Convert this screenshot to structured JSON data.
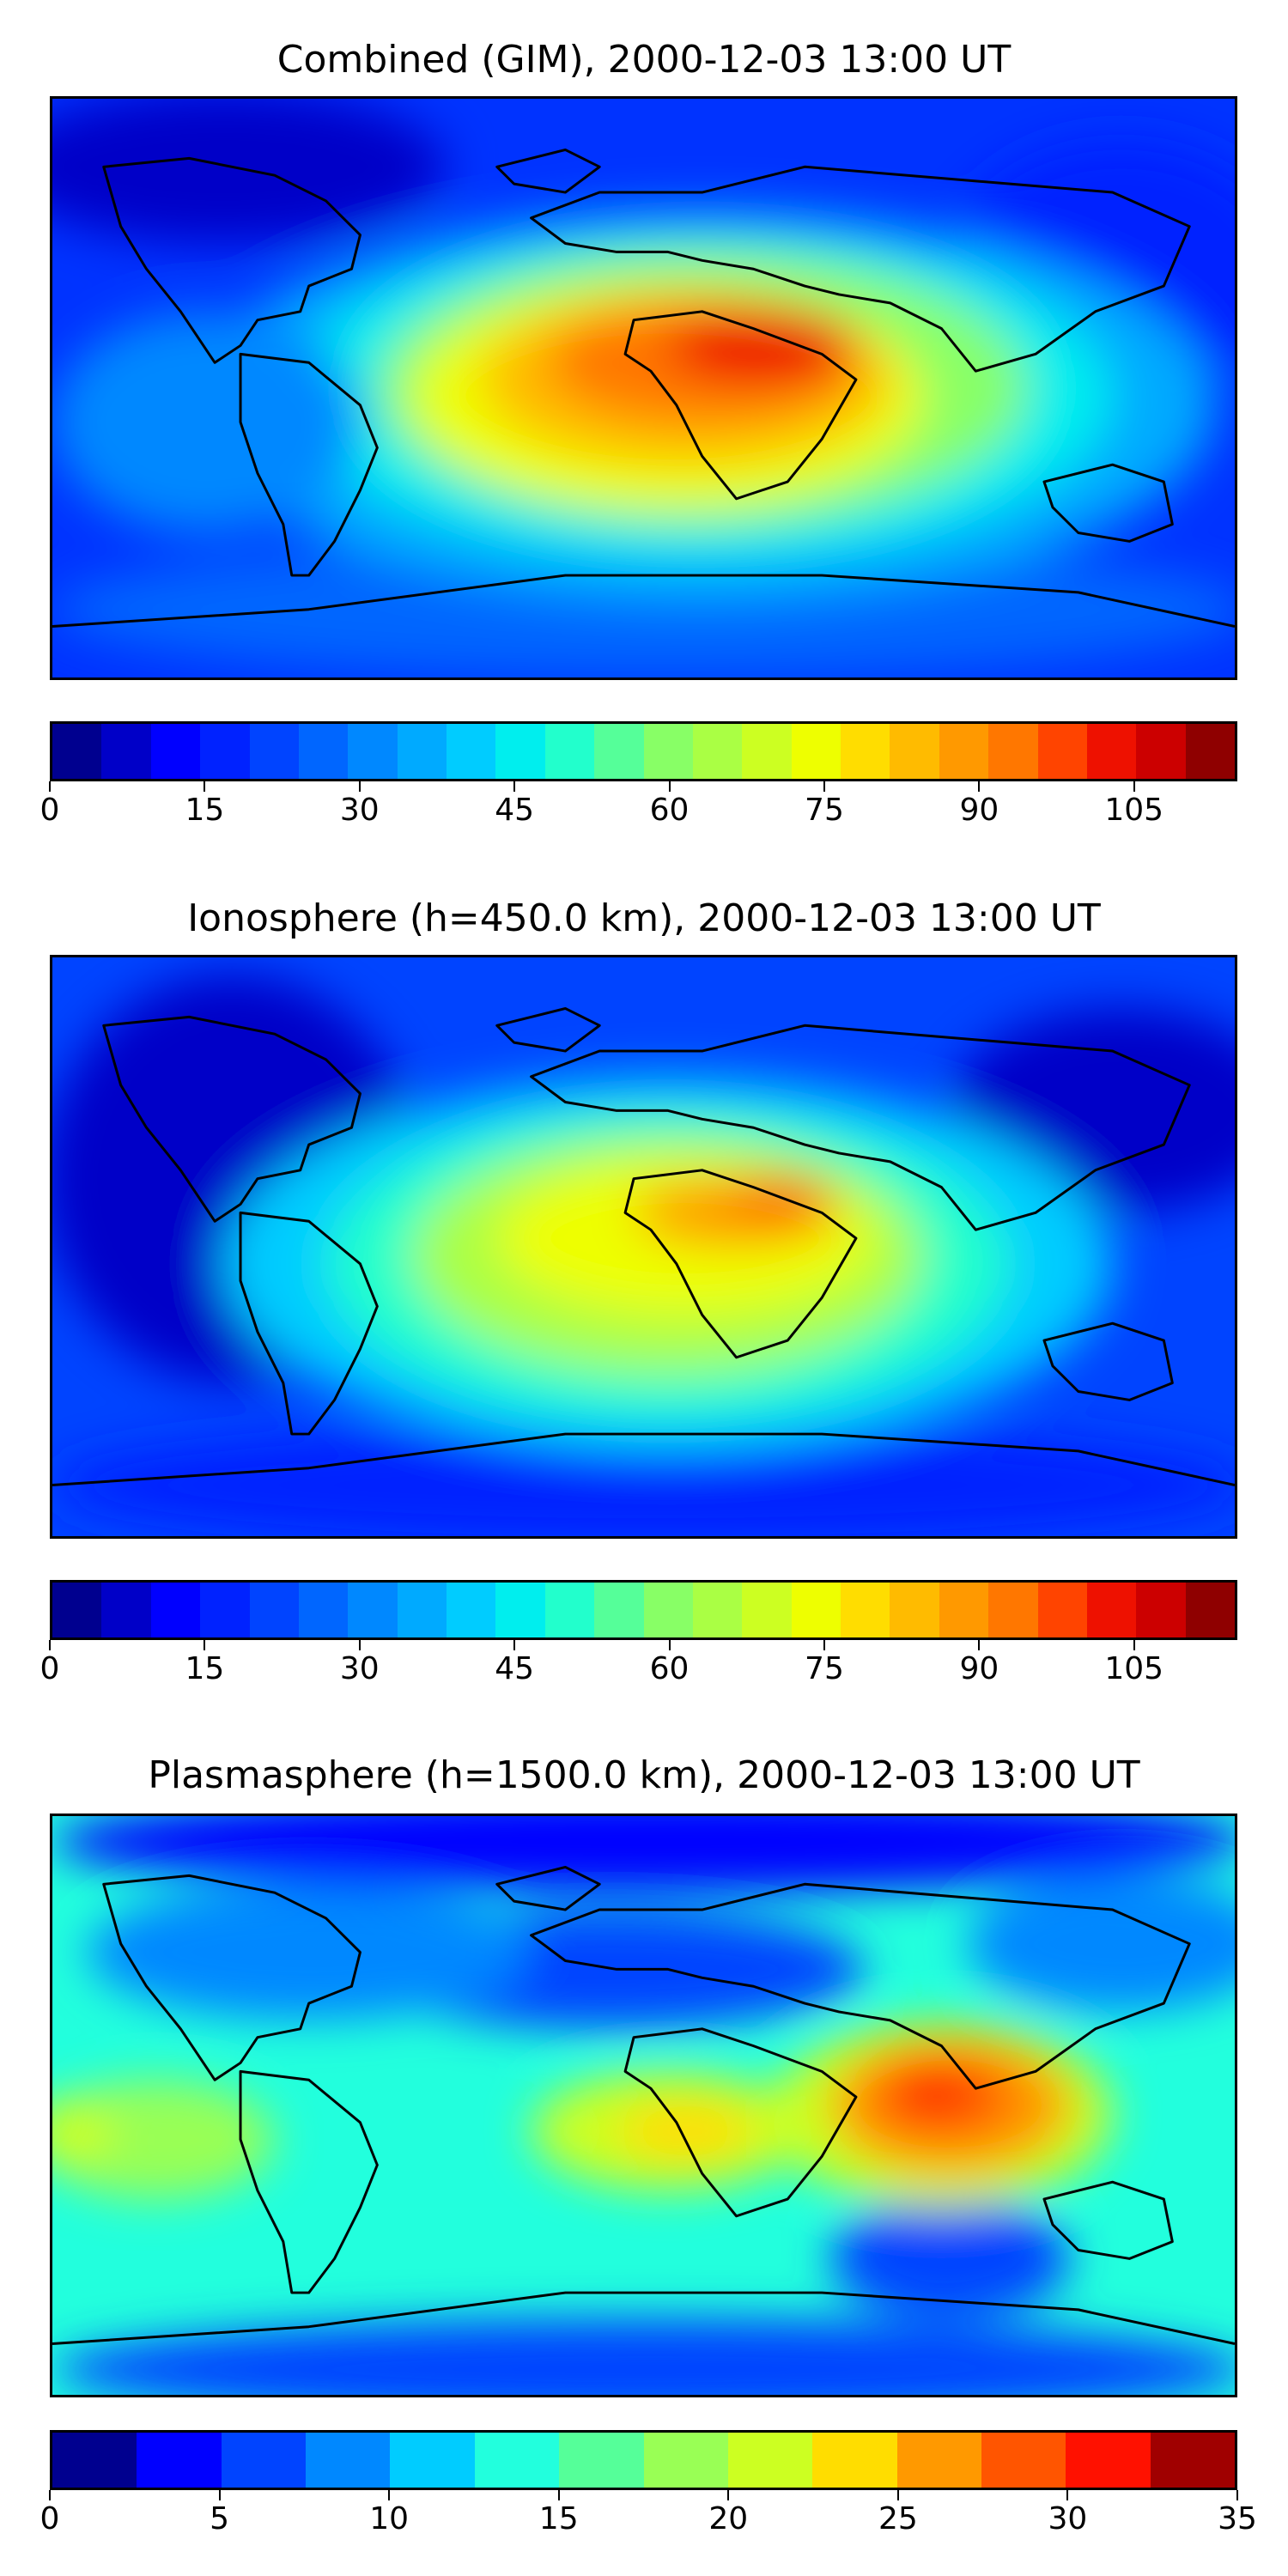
{
  "panels": [
    {
      "id": "combined",
      "title": "Combined (GIM), 2000-12-03 13:00 UT",
      "colorbar": {
        "min": 0,
        "max": 115,
        "step": 5,
        "ticks": [
          "0",
          "15",
          "30",
          "45",
          "60",
          "75",
          "90",
          "105"
        ],
        "tick_values": [
          0,
          15,
          30,
          45,
          60,
          75,
          90,
          105
        ],
        "colors": [
          "#00008f",
          "#0000c8",
          "#0000ff",
          "#0022ff",
          "#0044ff",
          "#0066ff",
          "#0088ff",
          "#00aaff",
          "#00ccff",
          "#00eeee",
          "#22ffcc",
          "#55ff99",
          "#88ff66",
          "#aaff44",
          "#ccff22",
          "#eeff00",
          "#ffdd00",
          "#ffbb00",
          "#ff9900",
          "#ff7700",
          "#ff4400",
          "#ee1100",
          "#cc0000",
          "#8f0000"
        ]
      }
    },
    {
      "id": "ionosphere",
      "title": "Ionosphere  (h=450.0 km), 2000-12-03 13:00 UT",
      "colorbar": {
        "min": 0,
        "max": 115,
        "step": 5,
        "ticks": [
          "0",
          "15",
          "30",
          "45",
          "60",
          "75",
          "90",
          "105"
        ],
        "tick_values": [
          0,
          15,
          30,
          45,
          60,
          75,
          90,
          105
        ],
        "colors": [
          "#00008f",
          "#0000c8",
          "#0000ff",
          "#0022ff",
          "#0044ff",
          "#0066ff",
          "#0088ff",
          "#00aaff",
          "#00ccff",
          "#00eeee",
          "#22ffcc",
          "#55ff99",
          "#88ff66",
          "#aaff44",
          "#ccff22",
          "#eeff00",
          "#ffdd00",
          "#ffbb00",
          "#ff9900",
          "#ff7700",
          "#ff4400",
          "#ee1100",
          "#cc0000",
          "#8f0000"
        ]
      }
    },
    {
      "id": "plasmasphere",
      "title": "Plasmasphere (h=1500.0 km), 2000-12-03 13:00 UT",
      "colorbar": {
        "min": 0,
        "max": 35,
        "step": 2.5,
        "ticks": [
          "0",
          "5",
          "10",
          "15",
          "20",
          "25",
          "30",
          "35"
        ],
        "tick_values": [
          0,
          5,
          10,
          15,
          20,
          25,
          30,
          35
        ],
        "colors": [
          "#00008f",
          "#0000ff",
          "#0044ff",
          "#0088ff",
          "#00ccff",
          "#22ffdd",
          "#55ff99",
          "#99ff55",
          "#ccff22",
          "#ffdd00",
          "#ff9900",
          "#ff5500",
          "#ff1100",
          "#a00000"
        ]
      }
    }
  ]
}
